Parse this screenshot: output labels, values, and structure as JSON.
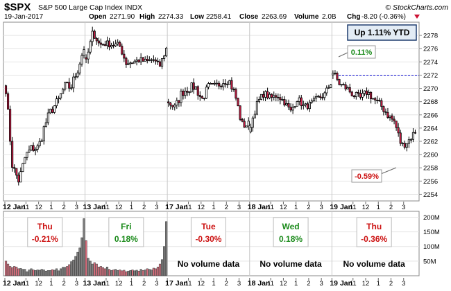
{
  "header": {
    "symbol": "$SPX",
    "name": "S&P 500 Large Cap Index",
    "exchange": "INDX",
    "date": "19-Jan-2017",
    "open_label": "Open",
    "open": "2271.90",
    "high_label": "High",
    "high": "2274.33",
    "low_label": "Low",
    "low": "2258.41",
    "close_label": "Close",
    "close": "2263.69",
    "volume_label": "Volume",
    "volume": "2.0B",
    "chg_label": "Chg",
    "chg": "-8.20 (-0.36%)",
    "brand": "© StockCharts.com"
  },
  "colors": {
    "up": "#ffffff",
    "down": "#d6204b",
    "vol_up": "#808080",
    "vol_down": "#e07080",
    "pos_text": "#1a8a1a",
    "neg_text": "#cc1111",
    "ref_line": "#0000cc"
  },
  "chart_data": [
    {
      "type": "candlestick",
      "title": "$SPX S&P 500 Large Cap Index INDX",
      "ylim": [
        2253,
        2280
      ],
      "y_ticks": [
        2254,
        2256,
        2258,
        2260,
        2262,
        2264,
        2266,
        2268,
        2270,
        2272,
        2274,
        2276,
        2278
      ],
      "x_ticks": [
        {
          "label": "12 Jan",
          "bar": 0,
          "major": true
        },
        {
          "label": "11",
          "bar": 10
        },
        {
          "label": "12",
          "bar": 16
        },
        {
          "label": "1",
          "bar": 22
        },
        {
          "label": "2",
          "bar": 28
        },
        {
          "label": "3",
          "bar": 34
        },
        {
          "label": "13 Jan",
          "bar": 38,
          "major": true
        },
        {
          "label": "11",
          "bar": 48
        },
        {
          "label": "12",
          "bar": 54
        },
        {
          "label": "1",
          "bar": 60
        },
        {
          "label": "2",
          "bar": 66
        },
        {
          "label": "3",
          "bar": 72
        },
        {
          "label": "17 Jan",
          "bar": 77,
          "major": true
        },
        {
          "label": "11",
          "bar": 87
        },
        {
          "label": "12",
          "bar": 93
        },
        {
          "label": "1",
          "bar": 99
        },
        {
          "label": "2",
          "bar": 105
        },
        {
          "label": "3",
          "bar": 111
        },
        {
          "label": "18 Jan",
          "bar": 116,
          "major": true
        },
        {
          "label": "11",
          "bar": 126
        },
        {
          "label": "12",
          "bar": 132
        },
        {
          "label": "1",
          "bar": 138
        },
        {
          "label": "2",
          "bar": 144
        },
        {
          "label": "3",
          "bar": 150
        },
        {
          "label": "19 Jan",
          "bar": 155,
          "major": true
        },
        {
          "label": "11",
          "bar": 165
        },
        {
          "label": "12",
          "bar": 171
        },
        {
          "label": "1",
          "bar": 177
        },
        {
          "label": "2",
          "bar": 183
        },
        {
          "label": "3",
          "bar": 189
        }
      ],
      "days": [
        {
          "day": "12 Jan",
          "anchors": [
            2270.0,
            2258.2,
            2256.0,
            2259.8,
            2261.0,
            2261.0,
            2264.5,
            2266.8,
            2268.0,
            2270.3,
            2270.2,
            2272.8,
            2276.2
          ],
          "noise": 0.8
        },
        {
          "day": "13 Jan",
          "anchors": [
            2274.0,
            2278.5,
            2276.6,
            2276.8,
            2276.6,
            2276.5,
            2273.8,
            2274.0,
            2274.3,
            2274.0,
            2274.4,
            2273.3,
            2276.0
          ],
          "noise": 0.5
        },
        {
          "day": "17 Jan",
          "anchors": [
            2268.0,
            2267.0,
            2269.4,
            2270.0,
            2270.3,
            2268.3,
            2270.2,
            2270.2,
            2271.0,
            2271.4,
            2269.0,
            2264.5,
            2264.5
          ],
          "noise": 0.7
        },
        {
          "day": "18 Jan",
          "anchors": [
            2264.5,
            2267.8,
            2269.3,
            2268.5,
            2269.0,
            2268.0,
            2266.5,
            2268.5,
            2267.2,
            2267.6,
            2268.5,
            2269.0,
            2270.8
          ],
          "noise": 0.5
        },
        {
          "day": "19 Jan",
          "anchors": [
            2272.4,
            2270.6,
            2270.0,
            2269.0,
            2268.5,
            2269.5,
            2268.3,
            2267.4,
            2266.0,
            2264.9,
            2261.3,
            2262.1,
            2263.5
          ],
          "noise": 0.6
        }
      ],
      "annotations": [
        {
          "label": "Up 1.11% YTD",
          "kind": "box"
        },
        {
          "label": "0.11%",
          "kind": "callout",
          "color": "pos"
        },
        {
          "label": "-0.59%",
          "kind": "callout",
          "color": "neg"
        }
      ],
      "reference_line": {
        "y": 2272,
        "style": "dashed"
      }
    },
    {
      "type": "bar",
      "title": "Volume",
      "ylim": [
        0,
        220
      ],
      "y_ticks": [
        {
          "value": 50,
          "label": "50M"
        },
        {
          "value": 100,
          "label": "100M"
        },
        {
          "value": 150,
          "label": "150M"
        },
        {
          "value": 200,
          "label": "200M"
        }
      ],
      "days": [
        {
          "day": "Thu",
          "change": "-0.21%",
          "direction": "neg",
          "has_volume": true,
          "volumes": [
            50,
            40,
            32,
            28,
            32,
            30,
            24,
            25,
            22,
            22,
            14,
            20,
            24,
            20,
            18,
            20,
            19,
            22,
            20,
            16,
            18,
            18,
            21,
            19,
            24,
            17,
            24,
            29,
            29,
            32,
            38,
            48,
            54,
            66,
            80,
            95,
            130,
            195
          ]
        },
        {
          "day": "Fri",
          "change": "0.18%",
          "direction": "pos",
          "has_volume": true,
          "volumes": [
            120,
            60,
            50,
            40,
            45,
            40,
            30,
            32,
            28,
            24,
            30,
            22,
            18,
            20,
            22,
            18,
            20,
            17,
            19,
            14,
            16,
            18,
            20,
            17,
            19,
            16,
            22,
            18,
            20,
            24,
            22,
            20,
            26,
            24,
            30,
            40,
            55,
            100,
            185
          ]
        },
        {
          "day": "Tue",
          "change": "-0.30%",
          "direction": "neg",
          "has_volume": false,
          "note": "No volume data"
        },
        {
          "day": "Wed",
          "change": "0.18%",
          "direction": "pos",
          "has_volume": false,
          "note": "No volume data"
        },
        {
          "day": "Thu",
          "change": "-0.36%",
          "direction": "neg",
          "has_volume": false,
          "note": "No volume data"
        }
      ]
    }
  ]
}
